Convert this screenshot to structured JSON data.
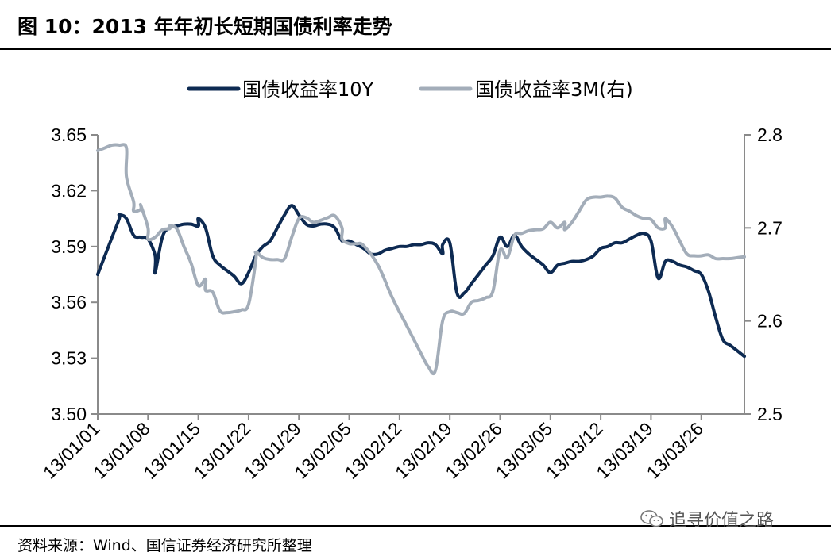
{
  "figure": {
    "title": "图 10：2013 年年初长短期国债利率走势",
    "source": "资料来源：Wind、国信证券经济研究所整理",
    "watermark": "追寻价值之路",
    "watermark_icon": "wechat-icon"
  },
  "chart_data": {
    "type": "line",
    "title": "",
    "xlabel": "",
    "ylabel": "",
    "y2label": "",
    "xlim": [
      "2013-01-01",
      "2013-04-01"
    ],
    "ylim": [
      3.5,
      3.65
    ],
    "y2lim": [
      2.5,
      2.8
    ],
    "x_ticks": [
      "13/01/01",
      "13/01/08",
      "13/01/15",
      "13/01/22",
      "13/01/29",
      "13/02/05",
      "13/02/12",
      "13/02/19",
      "13/02/26",
      "13/03/05",
      "13/03/12",
      "13/03/19",
      "13/03/26"
    ],
    "y_ticks": [
      "3.65",
      "3.62",
      "3.59",
      "3.56",
      "3.53",
      "3.50"
    ],
    "y2_ticks": [
      "2.8",
      "2.7",
      "2.6",
      "2.5"
    ],
    "legend_position": "top",
    "grid": false,
    "colors": {
      "10Y": "#0d2a52",
      "3M": "#a3adb9"
    },
    "series": [
      {
        "name": "国债收益率10Y",
        "axis": "left",
        "color": "#0d2a52",
        "points": [
          [
            "2013-01-01",
            3.575
          ],
          [
            "2013-01-02",
            3.585
          ],
          [
            "2013-01-03",
            3.595
          ],
          [
            "2013-01-04",
            3.605
          ],
          [
            "2013-01-04",
            3.607
          ],
          [
            "2013-01-05",
            3.605
          ],
          [
            "2013-01-06",
            3.596
          ],
          [
            "2013-01-07",
            3.595
          ],
          [
            "2013-01-08",
            3.594
          ],
          [
            "2013-01-09",
            3.585
          ],
          [
            "2013-01-09",
            3.576
          ],
          [
            "2013-01-10",
            3.595
          ],
          [
            "2013-01-11",
            3.6
          ],
          [
            "2013-01-12",
            3.601
          ],
          [
            "2013-01-13",
            3.602
          ],
          [
            "2013-01-14",
            3.602
          ],
          [
            "2013-01-15",
            3.601
          ],
          [
            "2013-01-15",
            3.605
          ],
          [
            "2013-01-16",
            3.6
          ],
          [
            "2013-01-17",
            3.585
          ],
          [
            "2013-01-18",
            3.58
          ],
          [
            "2013-01-19",
            3.577
          ],
          [
            "2013-01-20",
            3.574
          ],
          [
            "2013-01-21",
            3.57
          ],
          [
            "2013-01-22",
            3.576
          ],
          [
            "2013-01-23",
            3.585
          ],
          [
            "2013-01-24",
            3.59
          ],
          [
            "2013-01-25",
            3.593
          ],
          [
            "2013-01-26",
            3.6
          ],
          [
            "2013-01-27",
            3.607
          ],
          [
            "2013-01-28",
            3.612
          ],
          [
            "2013-01-29",
            3.607
          ],
          [
            "2013-01-30",
            3.602
          ],
          [
            "2013-01-31",
            3.601
          ],
          [
            "2013-02-01",
            3.602
          ],
          [
            "2013-02-02",
            3.602
          ],
          [
            "2013-02-03",
            3.6
          ],
          [
            "2013-02-04",
            3.593
          ],
          [
            "2013-02-05",
            3.593
          ],
          [
            "2013-02-06",
            3.591
          ],
          [
            "2013-02-07",
            3.589
          ],
          [
            "2013-02-08",
            3.586
          ],
          [
            "2013-02-09",
            3.586
          ],
          [
            "2013-02-10",
            3.588
          ],
          [
            "2013-02-11",
            3.589
          ],
          [
            "2013-02-12",
            3.59
          ],
          [
            "2013-02-13",
            3.59
          ],
          [
            "2013-02-14",
            3.591
          ],
          [
            "2013-02-15",
            3.591
          ],
          [
            "2013-02-16",
            3.592
          ],
          [
            "2013-02-17",
            3.591
          ],
          [
            "2013-02-18",
            3.586
          ],
          [
            "2013-02-18",
            3.591
          ],
          [
            "2013-02-19",
            3.592
          ],
          [
            "2013-02-20",
            3.565
          ],
          [
            "2013-02-21",
            3.565
          ],
          [
            "2013-02-22",
            3.57
          ],
          [
            "2013-02-23",
            3.575
          ],
          [
            "2013-02-24",
            3.58
          ],
          [
            "2013-02-25",
            3.585
          ],
          [
            "2013-02-26",
            3.595
          ],
          [
            "2013-02-27",
            3.59
          ],
          [
            "2013-02-28",
            3.596
          ],
          [
            "2013-03-01",
            3.59
          ],
          [
            "2013-03-02",
            3.586
          ],
          [
            "2013-03-03",
            3.583
          ],
          [
            "2013-03-04",
            3.58
          ],
          [
            "2013-03-05",
            3.576
          ],
          [
            "2013-03-06",
            3.58
          ],
          [
            "2013-03-07",
            3.581
          ],
          [
            "2013-03-08",
            3.582
          ],
          [
            "2013-03-09",
            3.582
          ],
          [
            "2013-03-10",
            3.583
          ],
          [
            "2013-03-11",
            3.585
          ],
          [
            "2013-03-12",
            3.589
          ],
          [
            "2013-03-13",
            3.59
          ],
          [
            "2013-03-14",
            3.592
          ],
          [
            "2013-03-15",
            3.592
          ],
          [
            "2013-03-16",
            3.594
          ],
          [
            "2013-03-17",
            3.596
          ],
          [
            "2013-03-18",
            3.597
          ],
          [
            "2013-03-19",
            3.593
          ],
          [
            "2013-03-20",
            3.573
          ],
          [
            "2013-03-21",
            3.582
          ],
          [
            "2013-03-22",
            3.582
          ],
          [
            "2013-03-23",
            3.58
          ],
          [
            "2013-03-24",
            3.579
          ],
          [
            "2013-03-25",
            3.577
          ],
          [
            "2013-03-26",
            3.575
          ],
          [
            "2013-03-27",
            3.566
          ],
          [
            "2013-03-28",
            3.552
          ],
          [
            "2013-03-29",
            3.54
          ],
          [
            "2013-03-30",
            3.537
          ],
          [
            "2013-03-31",
            3.534
          ],
          [
            "2013-04-01",
            3.531
          ]
        ]
      },
      {
        "name": "国债收益率3M(右)",
        "axis": "right",
        "color": "#a3adb9",
        "points": [
          [
            "2013-01-01",
            2.783
          ],
          [
            "2013-01-02",
            2.786
          ],
          [
            "2013-01-03",
            2.789
          ],
          [
            "2013-01-04",
            2.789
          ],
          [
            "2013-01-05",
            2.786
          ],
          [
            "2013-01-05",
            2.755
          ],
          [
            "2013-01-06",
            2.728
          ],
          [
            "2013-01-06",
            2.718
          ],
          [
            "2013-01-07",
            2.72
          ],
          [
            "2013-01-07",
            2.724
          ],
          [
            "2013-01-08",
            2.7
          ],
          [
            "2013-01-08",
            2.688
          ],
          [
            "2013-01-09",
            2.69
          ],
          [
            "2013-01-10",
            2.698
          ],
          [
            "2013-01-11",
            2.699
          ],
          [
            "2013-01-11",
            2.702
          ],
          [
            "2013-01-12",
            2.699
          ],
          [
            "2013-01-13",
            2.68
          ],
          [
            "2013-01-14",
            2.662
          ],
          [
            "2013-01-15",
            2.638
          ],
          [
            "2013-01-16",
            2.645
          ],
          [
            "2013-01-16",
            2.633
          ],
          [
            "2013-01-17",
            2.631
          ],
          [
            "2013-01-18",
            2.611
          ],
          [
            "2013-01-19",
            2.609
          ],
          [
            "2013-01-20",
            2.61
          ],
          [
            "2013-01-21",
            2.612
          ],
          [
            "2013-01-22",
            2.618
          ],
          [
            "2013-01-23",
            2.665
          ],
          [
            "2013-01-23",
            2.674
          ],
          [
            "2013-01-24",
            2.668
          ],
          [
            "2013-01-25",
            2.666
          ],
          [
            "2013-01-26",
            2.666
          ],
          [
            "2013-01-27",
            2.667
          ],
          [
            "2013-01-28",
            2.69
          ],
          [
            "2013-01-29",
            2.71
          ],
          [
            "2013-01-30",
            2.711
          ],
          [
            "2013-01-31",
            2.706
          ],
          [
            "2013-02-01",
            2.708
          ],
          [
            "2013-02-02",
            2.711
          ],
          [
            "2013-02-03",
            2.713
          ],
          [
            "2013-02-04",
            2.7
          ],
          [
            "2013-02-04",
            2.688
          ],
          [
            "2013-02-05",
            2.683
          ],
          [
            "2013-02-06",
            2.683
          ],
          [
            "2013-02-07",
            2.681
          ],
          [
            "2013-02-09",
            2.66
          ],
          [
            "2013-02-11",
            2.625
          ],
          [
            "2013-02-13",
            2.595
          ],
          [
            "2013-02-15",
            2.565
          ],
          [
            "2013-02-16",
            2.551
          ],
          [
            "2013-02-17",
            2.547
          ],
          [
            "2013-02-18",
            2.6
          ],
          [
            "2013-02-19",
            2.61
          ],
          [
            "2013-02-20",
            2.609
          ],
          [
            "2013-02-21",
            2.608
          ],
          [
            "2013-02-22",
            2.62
          ],
          [
            "2013-02-23",
            2.622
          ],
          [
            "2013-02-24",
            2.625
          ],
          [
            "2013-02-25",
            2.632
          ],
          [
            "2013-02-26",
            2.676
          ],
          [
            "2013-02-27",
            2.668
          ],
          [
            "2013-02-28",
            2.692
          ],
          [
            "2013-03-01",
            2.694
          ],
          [
            "2013-03-02",
            2.697
          ],
          [
            "2013-03-03",
            2.698
          ],
          [
            "2013-03-04",
            2.699
          ],
          [
            "2013-03-05",
            2.706
          ],
          [
            "2013-03-06",
            2.7
          ],
          [
            "2013-03-07",
            2.706
          ],
          [
            "2013-03-07",
            2.698
          ],
          [
            "2013-03-08",
            2.706
          ],
          [
            "2013-03-09",
            2.718
          ],
          [
            "2013-03-10",
            2.73
          ],
          [
            "2013-03-11",
            2.733
          ],
          [
            "2013-03-12",
            2.733
          ],
          [
            "2013-03-13",
            2.734
          ],
          [
            "2013-03-14",
            2.732
          ],
          [
            "2013-03-15",
            2.722
          ],
          [
            "2013-03-16",
            2.718
          ],
          [
            "2013-03-17",
            2.713
          ],
          [
            "2013-03-18",
            2.71
          ],
          [
            "2013-03-19",
            2.709
          ],
          [
            "2013-03-20",
            2.7
          ],
          [
            "2013-03-21",
            2.7
          ],
          [
            "2013-03-21",
            2.71
          ],
          [
            "2013-03-22",
            2.701
          ],
          [
            "2013-03-23",
            2.686
          ],
          [
            "2013-03-24",
            2.672
          ],
          [
            "2013-03-25",
            2.67
          ],
          [
            "2013-03-26",
            2.67
          ],
          [
            "2013-03-27",
            2.671
          ],
          [
            "2013-03-28",
            2.667
          ],
          [
            "2013-03-29",
            2.667
          ],
          [
            "2013-03-30",
            2.667
          ],
          [
            "2013-03-31",
            2.668
          ],
          [
            "2013-04-01",
            2.669
          ]
        ]
      }
    ]
  }
}
